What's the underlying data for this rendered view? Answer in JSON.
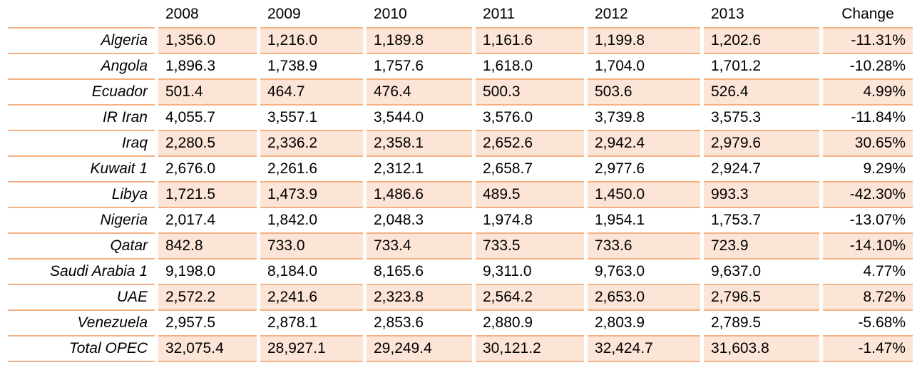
{
  "table": {
    "columns": [
      "2008",
      "2009",
      "2010",
      "2011",
      "2012",
      "2013",
      "Change"
    ],
    "rows": [
      {
        "label": "Algeria",
        "cells": [
          "1,356.0",
          "1,216.0",
          "1,189.8",
          "1,161.6",
          "1,199.8",
          "1,202.6",
          "-11.31%"
        ]
      },
      {
        "label": "Angola",
        "cells": [
          "1,896.3",
          "1,738.9",
          "1,757.6",
          "1,618.0",
          "1,704.0",
          "1,701.2",
          "-10.28%"
        ]
      },
      {
        "label": "Ecuador",
        "cells": [
          "501.4",
          "464.7",
          "476.4",
          "500.3",
          "503.6",
          "526.4",
          "4.99%"
        ]
      },
      {
        "label": "IR Iran",
        "cells": [
          "4,055.7",
          "3,557.1",
          "3,544.0",
          "3,576.0",
          "3,739.8",
          "3,575.3",
          "-11.84%"
        ]
      },
      {
        "label": "Iraq",
        "cells": [
          "2,280.5",
          "2,336.2",
          "2,358.1",
          "2,652.6",
          "2,942.4",
          "2,979.6",
          "30.65%"
        ]
      },
      {
        "label": "Kuwait 1",
        "cells": [
          "2,676.0",
          "2,261.6",
          "2,312.1",
          "2,658.7",
          "2,977.6",
          "2,924.7",
          "9.29%"
        ]
      },
      {
        "label": "Libya",
        "cells": [
          "1,721.5",
          "1,473.9",
          "1,486.6",
          "489.5",
          "1,450.0",
          "993.3",
          "-42.30%"
        ]
      },
      {
        "label": "Nigeria",
        "cells": [
          "2,017.4",
          "1,842.0",
          "2,048.3",
          "1,974.8",
          "1,954.1",
          "1,753.7",
          "-13.07%"
        ]
      },
      {
        "label": "Qatar",
        "cells": [
          "842.8",
          "733.0",
          "733.4",
          "733.5",
          "733.6",
          "723.9",
          "-14.10%"
        ]
      },
      {
        "label": "Saudi Arabia 1",
        "cells": [
          "9,198.0",
          "8,184.0",
          "8,165.6",
          "9,311.0",
          "9,763.0",
          "9,637.0",
          "4.77%"
        ]
      },
      {
        "label": "UAE",
        "cells": [
          "2,572.2",
          "2,241.6",
          "2,323.8",
          "2,564.2",
          "2,653.0",
          "2,796.5",
          "8.72%"
        ]
      },
      {
        "label": "Venezuela",
        "cells": [
          "2,957.5",
          "2,878.1",
          "2,853.6",
          "2,880.9",
          "2,803.9",
          "2,789.5",
          "-5.68%"
        ]
      },
      {
        "label": "Total OPEC",
        "cells": [
          "32,075.4",
          "28,927.1",
          "29,249.4",
          "30,121.2",
          "32,424.7",
          "31,603.8",
          "-1.47%"
        ]
      }
    ]
  }
}
